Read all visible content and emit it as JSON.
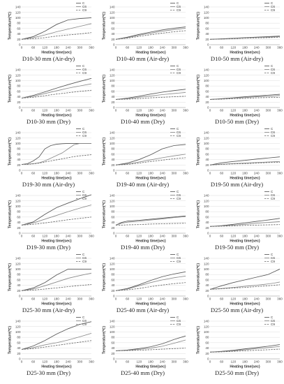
{
  "figure": {
    "series_names": [
      "C",
      "C6",
      "C9"
    ]
  },
  "chart_data": [
    {
      "type": "line",
      "caption": "D10-30 mm (Air-dry)",
      "xlabel": "Heating time(sec)",
      "ylabel": "Temperature(℃)",
      "xlim": [
        0,
        360
      ],
      "ylim": [
        0,
        140
      ],
      "x": [
        0,
        60,
        120,
        180,
        240,
        300,
        360
      ],
      "series": [
        {
          "name": "C",
          "values": [
            20,
            30,
            50,
            75,
            92,
            97,
            100
          ]
        },
        {
          "name": "C6",
          "values": [
            20,
            26,
            36,
            48,
            58,
            68,
            78
          ]
        },
        {
          "name": "C9",
          "values": [
            20,
            22,
            26,
            32,
            36,
            40,
            45
          ]
        }
      ]
    },
    {
      "type": "line",
      "caption": "D10-40 mm (Air-dry)",
      "xlabel": "Heating time(sec)",
      "ylabel": "Temperature(℃)",
      "xlim": [
        0,
        360
      ],
      "ylim": [
        0,
        140
      ],
      "x": [
        0,
        60,
        120,
        180,
        240,
        300,
        360
      ],
      "series": [
        {
          "name": "C",
          "values": [
            20,
            28,
            38,
            47,
            55,
            61,
            66
          ]
        },
        {
          "name": "C6",
          "values": [
            20,
            26,
            35,
            43,
            50,
            56,
            61
          ]
        },
        {
          "name": "C9",
          "values": [
            20,
            24,
            31,
            37,
            43,
            48,
            52
          ]
        }
      ]
    },
    {
      "type": "line",
      "caption": "D10-50 mm (Air-dry)",
      "xlabel": "Heating time(sec)",
      "ylabel": "Temperature(℃)",
      "xlim": [
        0,
        360
      ],
      "ylim": [
        0,
        140
      ],
      "x": [
        0,
        60,
        120,
        180,
        240,
        300,
        360
      ],
      "series": [
        {
          "name": "C",
          "values": [
            20,
            22,
            24,
            26,
            28,
            30,
            32
          ]
        },
        {
          "name": "C6",
          "values": [
            20,
            21,
            23,
            25,
            27,
            28,
            30
          ]
        },
        {
          "name": "C9",
          "values": [
            20,
            21,
            22,
            24,
            25,
            26,
            28
          ]
        }
      ]
    },
    {
      "type": "line",
      "caption": "D10-30 mm (Dry)",
      "xlabel": "Heating time(sec)",
      "ylabel": "Temperature(℃)",
      "xlim": [
        0,
        360
      ],
      "ylim": [
        0,
        140
      ],
      "x": [
        0,
        60,
        120,
        180,
        240,
        300,
        360
      ],
      "series": [
        {
          "name": "C",
          "values": [
            35,
            45,
            58,
            72,
            85,
            97,
            108
          ]
        },
        {
          "name": "C6",
          "values": [
            35,
            42,
            52,
            62,
            72,
            80,
            88
          ]
        },
        {
          "name": "C9",
          "values": [
            35,
            38,
            44,
            50,
            55,
            60,
            64
          ]
        }
      ]
    },
    {
      "type": "line",
      "caption": "D10-40 mm (Dry)",
      "xlabel": "Heating time(sec)",
      "ylabel": "Temperature(℃)",
      "xlim": [
        0,
        360
      ],
      "ylim": [
        0,
        140
      ],
      "x": [
        0,
        60,
        120,
        180,
        240,
        300,
        360
      ],
      "series": [
        {
          "name": "C",
          "values": [
            30,
            35,
            42,
            50,
            57,
            63,
            68
          ]
        },
        {
          "name": "C6",
          "values": [
            30,
            33,
            38,
            43,
            48,
            52,
            56
          ]
        },
        {
          "name": "C9",
          "values": [
            30,
            31,
            33,
            36,
            38,
            40,
            42
          ]
        }
      ]
    },
    {
      "type": "line",
      "caption": "D10-50 mm (Dry)",
      "xlabel": "Heating time(sec)",
      "ylabel": "Temperature(℃)",
      "xlim": [
        0,
        360
      ],
      "ylim": [
        0,
        140
      ],
      "x": [
        0,
        60,
        120,
        180,
        240,
        300,
        360
      ],
      "series": [
        {
          "name": "C",
          "values": [
            30,
            33,
            36,
            40,
            43,
            46,
            49
          ]
        },
        {
          "name": "C6",
          "values": [
            30,
            32,
            35,
            37,
            40,
            42,
            45
          ]
        },
        {
          "name": "C9",
          "values": [
            30,
            31,
            33,
            34,
            36,
            37,
            38
          ]
        }
      ]
    },
    {
      "type": "line",
      "caption": "D19-30 mm (Air-dry)",
      "xlabel": "Heating time(sec)",
      "ylabel": "Temperature(℃)",
      "xlim": [
        0,
        360
      ],
      "ylim": [
        0,
        140
      ],
      "x": [
        0,
        30,
        60,
        90,
        120,
        150,
        180,
        210,
        240,
        270,
        300,
        330,
        360
      ],
      "series": [
        {
          "name": "C",
          "values": [
            22,
            25,
            35,
            50,
            80,
            92,
            97,
            99,
            100,
            100,
            100,
            100,
            100
          ]
        },
        {
          "name": "C6",
          "values": [
            22,
            23,
            25,
            28,
            35,
            45,
            55,
            65,
            80,
            95,
            100,
            100,
            100
          ]
        },
        {
          "name": "C9",
          "values": [
            22,
            22,
            24,
            27,
            31,
            35,
            39,
            43,
            47,
            51,
            54,
            56,
            58
          ]
        }
      ]
    },
    {
      "type": "line",
      "caption": "D19-40 mm (Air-dry)",
      "xlabel": "Heating time(sec)",
      "ylabel": "Temperature(℃)",
      "xlim": [
        0,
        360
      ],
      "ylim": [
        0,
        140
      ],
      "x": [
        0,
        60,
        120,
        180,
        240,
        300,
        360
      ],
      "series": [
        {
          "name": "C",
          "values": [
            20,
            27,
            40,
            58,
            80,
            92,
            96
          ]
        },
        {
          "name": "C6",
          "values": [
            20,
            24,
            31,
            39,
            47,
            54,
            60
          ]
        },
        {
          "name": "C9",
          "values": [
            20,
            22,
            27,
            33,
            38,
            43,
            47
          ]
        }
      ]
    },
    {
      "type": "line",
      "caption": "D19-50 mm (Air-dry)",
      "xlabel": "Heating time(sec)",
      "ylabel": "Temperature(℃)",
      "xlim": [
        0,
        360
      ],
      "ylim": [
        0,
        140
      ],
      "x": [
        0,
        60,
        120,
        180,
        240,
        300,
        360
      ],
      "series": [
        {
          "name": "C",
          "values": [
            20,
            28,
            33,
            37,
            42,
            46,
            50
          ]
        },
        {
          "name": "C6",
          "values": [
            20,
            23,
            25,
            27,
            29,
            31,
            33
          ]
        },
        {
          "name": "C9",
          "values": [
            20,
            22,
            24,
            25,
            27,
            29,
            30
          ]
        }
      ]
    },
    {
      "type": "line",
      "caption": "D19-30 mm (Dry)",
      "xlabel": "Heating time(sec)",
      "ylabel": "Temperature(℃)",
      "xlim": [
        0,
        360
      ],
      "ylim": [
        0,
        140
      ],
      "x": [
        0,
        60,
        120,
        180,
        240,
        300,
        360
      ],
      "series": [
        {
          "name": "C",
          "values": [
            30,
            42,
            70,
            95,
            112,
            128,
            143
          ]
        },
        {
          "name": "C6",
          "values": [
            30,
            38,
            52,
            66,
            80,
            93,
            105
          ]
        },
        {
          "name": "C9",
          "values": [
            30,
            33,
            38,
            44,
            50,
            55,
            60
          ]
        }
      ]
    },
    {
      "type": "line",
      "caption": "D19-40 mm (Dry)",
      "xlabel": "Heating time(sec)",
      "ylabel": "Temperature(℃)",
      "xlim": [
        0,
        360
      ],
      "ylim": [
        0,
        140
      ],
      "x": [
        0,
        30,
        60,
        120,
        180,
        240,
        300,
        360
      ],
      "series": [
        {
          "name": "C",
          "values": [
            30,
            40,
            45,
            48,
            52,
            56,
            60,
            64
          ]
        },
        {
          "name": "C6",
          "values": [
            30,
            37,
            41,
            45,
            49,
            53,
            58,
            62
          ]
        },
        {
          "name": "C9",
          "values": [
            30,
            30,
            31,
            32,
            34,
            35,
            36,
            37
          ]
        }
      ]
    },
    {
      "type": "line",
      "caption": "D19-50 mm (Dry)",
      "xlabel": "Heating time(sec)",
      "ylabel": "Temperature(℃)",
      "xlim": [
        0,
        360
      ],
      "ylim": [
        0,
        140
      ],
      "x": [
        0,
        60,
        120,
        180,
        240,
        300,
        360
      ],
      "series": [
        {
          "name": "C",
          "values": [
            25,
            28,
            33,
            38,
            44,
            49,
            55
          ]
        },
        {
          "name": "C6",
          "values": [
            25,
            27,
            30,
            33,
            37,
            40,
            43
          ]
        },
        {
          "name": "C9",
          "values": [
            25,
            26,
            27,
            29,
            30,
            31,
            32
          ]
        }
      ]
    },
    {
      "type": "line",
      "caption": "D25-30 mm (Air-dry)",
      "xlabel": "Heating time(sec)",
      "ylabel": "Temperature(℃)",
      "xlim": [
        0,
        360
      ],
      "ylim": [
        0,
        140
      ],
      "x": [
        0,
        60,
        120,
        180,
        240,
        300,
        360
      ],
      "series": [
        {
          "name": "C",
          "values": [
            20,
            30,
            50,
            78,
            100,
            100,
            100
          ]
        },
        {
          "name": "C6",
          "values": [
            20,
            26,
            38,
            52,
            66,
            76,
            85
          ]
        },
        {
          "name": "C9",
          "values": [
            20,
            22,
            26,
            30,
            35,
            39,
            43
          ]
        }
      ]
    },
    {
      "type": "line",
      "caption": "D25-40 mm (Air-dry)",
      "xlabel": "Heating time(sec)",
      "ylabel": "Temperature(℃)",
      "xlim": [
        0,
        360
      ],
      "ylim": [
        0,
        140
      ],
      "x": [
        0,
        60,
        120,
        180,
        240,
        300,
        360
      ],
      "series": [
        {
          "name": "C",
          "values": [
            20,
            28,
            42,
            58,
            72,
            82,
            90
          ]
        },
        {
          "name": "C6",
          "values": [
            20,
            26,
            38,
            50,
            60,
            68,
            74
          ]
        },
        {
          "name": "C9",
          "values": [
            20,
            23,
            28,
            35,
            41,
            46,
            50
          ]
        }
      ]
    },
    {
      "type": "line",
      "caption": "D25-50 mm (Air-dry)",
      "xlabel": "Heating time(sec)",
      "ylabel": "Temperature(℃)",
      "xlim": [
        0,
        360
      ],
      "ylim": [
        0,
        140
      ],
      "x": [
        0,
        60,
        120,
        180,
        240,
        300,
        330,
        360
      ],
      "series": [
        {
          "name": "C",
          "values": [
            25,
            38,
            50,
            60,
            70,
            80,
            90,
            100
          ]
        },
        {
          "name": "C6",
          "values": [
            25,
            28,
            32,
            36,
            40,
            45,
            48,
            52
          ]
        },
        {
          "name": "C9",
          "values": [
            25,
            27,
            30,
            32,
            35,
            38,
            40,
            42
          ]
        }
      ]
    },
    {
      "type": "line",
      "caption": "D25-30 mm (Dry)",
      "xlabel": "Heating time(sec)",
      "ylabel": "Temperature(℃)",
      "xlim": [
        0,
        360
      ],
      "ylim": [
        0,
        140
      ],
      "x": [
        0,
        60,
        120,
        180,
        240,
        300,
        360
      ],
      "series": [
        {
          "name": "C",
          "values": [
            35,
            48,
            68,
            92,
            112,
            128,
            138
          ]
        },
        {
          "name": "C6",
          "values": [
            35,
            42,
            52,
            60,
            70,
            82,
            95
          ]
        },
        {
          "name": "C9",
          "values": [
            35,
            38,
            44,
            50,
            56,
            62,
            68
          ]
        }
      ]
    },
    {
      "type": "line",
      "caption": "D25-40 mm (Dry)",
      "xlabel": "Heating time(sec)",
      "ylabel": "Temperature(℃)",
      "xlim": [
        0,
        360
      ],
      "ylim": [
        0,
        140
      ],
      "x": [
        0,
        60,
        120,
        180,
        240,
        300,
        360
      ],
      "series": [
        {
          "name": "C",
          "values": [
            30,
            33,
            38,
            45,
            56,
            72,
            85
          ]
        },
        {
          "name": "C6",
          "values": [
            30,
            32,
            35,
            40,
            47,
            58,
            70
          ]
        },
        {
          "name": "C9",
          "values": [
            30,
            31,
            32,
            34,
            36,
            38,
            40
          ]
        }
      ]
    },
    {
      "type": "line",
      "caption": "D25-50 mm (Dry)",
      "xlabel": "Heating time(sec)",
      "ylabel": "Temperature(℃)",
      "xlim": [
        0,
        360
      ],
      "ylim": [
        0,
        140
      ],
      "x": [
        0,
        60,
        120,
        180,
        240,
        300,
        360
      ],
      "series": [
        {
          "name": "C",
          "values": [
            25,
            28,
            32,
            37,
            42,
            47,
            53
          ]
        },
        {
          "name": "C6",
          "values": [
            25,
            27,
            30,
            34,
            38,
            42,
            46
          ]
        },
        {
          "name": "C9",
          "values": [
            25,
            26,
            28,
            30,
            32,
            34,
            36
          ]
        }
      ]
    }
  ]
}
